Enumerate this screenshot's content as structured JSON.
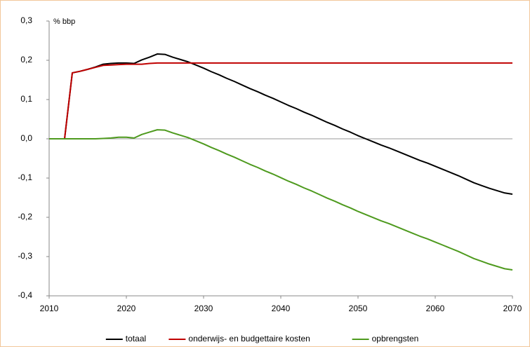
{
  "chart_data": {
    "type": "line",
    "ylabel": "% bbp",
    "x": [
      2010,
      2011,
      2012,
      2013,
      2014,
      2015,
      2016,
      2017,
      2018,
      2019,
      2020,
      2021,
      2022,
      2023,
      2024,
      2025,
      2026,
      2027,
      2028,
      2029,
      2030,
      2031,
      2032,
      2033,
      2034,
      2035,
      2036,
      2037,
      2038,
      2039,
      2040,
      2041,
      2042,
      2043,
      2044,
      2045,
      2046,
      2047,
      2048,
      2049,
      2050,
      2051,
      2052,
      2053,
      2054,
      2055,
      2056,
      2057,
      2058,
      2059,
      2060,
      2061,
      2062,
      2063,
      2064,
      2065,
      2066,
      2067,
      2068,
      2069,
      2070
    ],
    "series": [
      {
        "name": "totaal",
        "color": "#000000",
        "values": [
          0,
          0,
          0,
          0.168,
          0.172,
          0.177,
          0.183,
          0.19,
          0.192,
          0.193,
          0.193,
          0.192,
          0.201,
          0.208,
          0.216,
          0.215,
          0.208,
          0.202,
          0.196,
          0.188,
          0.18,
          0.171,
          0.163,
          0.154,
          0.146,
          0.137,
          0.128,
          0.12,
          0.111,
          0.103,
          0.094,
          0.085,
          0.077,
          0.068,
          0.06,
          0.051,
          0.042,
          0.034,
          0.025,
          0.017,
          0.008,
          0,
          -0.008,
          -0.016,
          -0.023,
          -0.031,
          -0.039,
          -0.047,
          -0.055,
          -0.062,
          -0.07,
          -0.078,
          -0.086,
          -0.094,
          -0.103,
          -0.112,
          -0.119,
          -0.126,
          -0.132,
          -0.138,
          -0.141
        ]
      },
      {
        "name": "onderwijs- en budgettaire kosten",
        "color": "#c00000",
        "values": [
          0,
          0,
          0,
          0.168,
          0.172,
          0.177,
          0.182,
          0.187,
          0.188,
          0.189,
          0.19,
          0.19,
          0.19,
          0.192,
          0.193,
          0.193,
          0.193,
          0.193,
          0.193,
          0.193,
          0.193,
          0.193,
          0.193,
          0.193,
          0.193,
          0.193,
          0.193,
          0.193,
          0.193,
          0.193,
          0.193,
          0.193,
          0.193,
          0.193,
          0.193,
          0.193,
          0.193,
          0.193,
          0.193,
          0.193,
          0.193,
          0.193,
          0.193,
          0.193,
          0.193,
          0.193,
          0.193,
          0.193,
          0.193,
          0.193,
          0.193,
          0.193,
          0.193,
          0.193,
          0.193,
          0.193,
          0.193,
          0.193,
          0.193,
          0.193,
          0.193
        ]
      },
      {
        "name": "opbrengsten",
        "color": "#4e9a1e",
        "values": [
          0,
          0,
          0,
          0,
          0,
          0,
          0,
          0.001,
          0.002,
          0.004,
          0.004,
          0.002,
          0.011,
          0.017,
          0.023,
          0.022,
          0.015,
          0.009,
          0.003,
          -0.005,
          -0.013,
          -0.022,
          -0.03,
          -0.039,
          -0.047,
          -0.056,
          -0.065,
          -0.073,
          -0.082,
          -0.09,
          -0.099,
          -0.108,
          -0.116,
          -0.125,
          -0.133,
          -0.142,
          -0.151,
          -0.159,
          -0.168,
          -0.176,
          -0.185,
          -0.193,
          -0.201,
          -0.209,
          -0.216,
          -0.224,
          -0.232,
          -0.24,
          -0.248,
          -0.255,
          -0.263,
          -0.271,
          -0.279,
          -0.287,
          -0.296,
          -0.305,
          -0.312,
          -0.319,
          -0.325,
          -0.331,
          -0.334
        ]
      }
    ],
    "xlim": [
      2010,
      2070
    ],
    "xticks": [
      2010,
      2020,
      2030,
      2040,
      2050,
      2060,
      2070
    ],
    "ylim": [
      -0.4,
      0.3
    ],
    "yticks": [
      {
        "value": -0.4,
        "label": "-0,4"
      },
      {
        "value": -0.3,
        "label": "-0,3"
      },
      {
        "value": -0.2,
        "label": "-0,2"
      },
      {
        "value": -0.1,
        "label": "-0,1"
      },
      {
        "value": 0,
        "label": "0,0"
      },
      {
        "value": 0.1,
        "label": "0,1"
      },
      {
        "value": 0.2,
        "label": "0,2"
      },
      {
        "value": 0.3,
        "label": "0,3"
      }
    ],
    "legend": "bottom"
  }
}
